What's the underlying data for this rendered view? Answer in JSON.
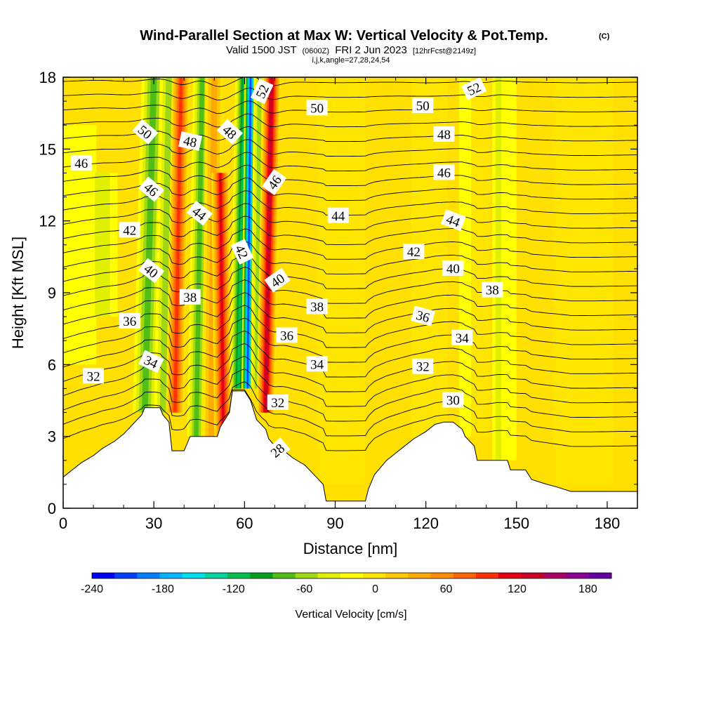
{
  "chart_data": {
    "type": "heatmap",
    "title": "Wind-Parallel Section at Max W: Vertical Velocity & Pot.Temp.",
    "title_mark": "(C)",
    "subtitle": {
      "valid": "Valid 1500 JST",
      "utc": "(0600Z)",
      "date": "FRI 2 Jun 2023",
      "fcst": "[12hrFcst@2149z]"
    },
    "indices_line": "i,j,k,angle=27,28,24,54",
    "xlabel": "Distance [nm]",
    "ylabel": "Height [Kft MSL]",
    "xlim": [
      0,
      190
    ],
    "ylim": [
      0,
      18
    ],
    "x_ticks": [
      "0",
      "30",
      "60",
      "90",
      "120",
      "150",
      "180"
    ],
    "y_ticks": [
      "0",
      "3",
      "6",
      "9",
      "12",
      "15",
      "18"
    ],
    "colorbar": {
      "label": "Vertical Velocity [cm/s]",
      "range": [
        -240,
        200
      ],
      "step": 20,
      "ticks": [
        "-240",
        "-180",
        "-120",
        "-60",
        "0",
        "60",
        "120",
        "180"
      ],
      "colors": [
        "#0000ff",
        "#0040ff",
        "#0080ff",
        "#00b4ff",
        "#00dcf0",
        "#00d2a0",
        "#00c050",
        "#00a020",
        "#50be14",
        "#a0d814",
        "#e0f000",
        "#ffff00",
        "#ffe600",
        "#ffc800",
        "#ffaa00",
        "#ff8c00",
        "#ff6400",
        "#ff3200",
        "#e60014",
        "#c80028",
        "#aa0064",
        "#8c0096",
        "#6400a0"
      ]
    },
    "terrain": [
      [
        0,
        1.3
      ],
      [
        3,
        1.6
      ],
      [
        6,
        1.9
      ],
      [
        10,
        2.2
      ],
      [
        13,
        2.5
      ],
      [
        17,
        2.8
      ],
      [
        20,
        3.1
      ],
      [
        23,
        3.5
      ],
      [
        26,
        3.9
      ],
      [
        27,
        4.2
      ],
      [
        32,
        4.2
      ],
      [
        33,
        3.9
      ],
      [
        35,
        3.6
      ],
      [
        36,
        2.4
      ],
      [
        40,
        2.4
      ],
      [
        41,
        2.7
      ],
      [
        42,
        3.0
      ],
      [
        51,
        3.0
      ],
      [
        52,
        3.4
      ],
      [
        55,
        4.0
      ],
      [
        56,
        4.9
      ],
      [
        60,
        4.9
      ],
      [
        62,
        4.5
      ],
      [
        64,
        3.7
      ],
      [
        67,
        3.3
      ],
      [
        68,
        2.9
      ],
      [
        70,
        2.6
      ],
      [
        73,
        2.4
      ],
      [
        76,
        2.1
      ],
      [
        80,
        1.8
      ],
      [
        83,
        1.4
      ],
      [
        86,
        1.0
      ],
      [
        87,
        0.3
      ],
      [
        100,
        0.3
      ],
      [
        101,
        0.8
      ],
      [
        103,
        1.4
      ],
      [
        107,
        2.0
      ],
      [
        110,
        2.3
      ],
      [
        113,
        2.6
      ],
      [
        116,
        2.9
      ],
      [
        120,
        3.2
      ],
      [
        123,
        3.5
      ],
      [
        126,
        3.6
      ],
      [
        129,
        3.6
      ],
      [
        132,
        3.3
      ],
      [
        133,
        3.0
      ],
      [
        136,
        2.6
      ],
      [
        137,
        2.0
      ],
      [
        147,
        2.0
      ],
      [
        148,
        1.6
      ],
      [
        153,
        1.6
      ],
      [
        155,
        1.2
      ],
      [
        160,
        1.0
      ],
      [
        163,
        0.9
      ],
      [
        168,
        0.7
      ],
      [
        190,
        0.7
      ]
    ],
    "vertical_velocity_bands": [
      {
        "x": 5,
        "tilt": 0,
        "width": 6,
        "w": -30,
        "z": [
          6,
          16
        ]
      },
      {
        "x": 13,
        "tilt": 0,
        "width": 5,
        "w": -50,
        "z": [
          8,
          14
        ]
      },
      {
        "x": 27,
        "tilt": 3,
        "width": 4,
        "w": -95,
        "z": [
          4,
          18
        ]
      },
      {
        "x": 33,
        "tilt": 2,
        "width": 3,
        "w": -60,
        "z": [
          4,
          18
        ]
      },
      {
        "x": 37,
        "tilt": 2,
        "width": 3,
        "w": 135,
        "z": [
          4,
          18
        ]
      },
      {
        "x": 44,
        "tilt": 2,
        "width": 3,
        "w": -85,
        "z": [
          3,
          18
        ]
      },
      {
        "x": 49,
        "tilt": 1,
        "width": 3,
        "w": 60,
        "z": [
          3,
          18
        ]
      },
      {
        "x": 53,
        "tilt": -1,
        "width": 3,
        "w": 140,
        "z": [
          3,
          14
        ]
      },
      {
        "x": 58,
        "tilt": 2,
        "width": 3,
        "w": -120,
        "z": [
          5,
          18
        ]
      },
      {
        "x": 61,
        "tilt": 1,
        "width": 2,
        "w": -235,
        "z": [
          5,
          18
        ]
      },
      {
        "x": 64,
        "tilt": 1,
        "width": 2,
        "w": -70,
        "z": [
          5,
          18
        ]
      },
      {
        "x": 67,
        "tilt": 2,
        "width": 3,
        "w": 175,
        "z": [
          4,
          18
        ]
      },
      {
        "x": 92,
        "tilt": 0,
        "width": 8,
        "w": 25,
        "z": [
          1,
          18
        ]
      },
      {
        "x": 121,
        "tilt": 0,
        "width": 6,
        "w": 30,
        "z": [
          3,
          18
        ]
      },
      {
        "x": 133,
        "tilt": 0,
        "width": 2,
        "w": -35,
        "z": [
          3,
          18
        ]
      },
      {
        "x": 138,
        "tilt": 0,
        "width": 3,
        "w": 25,
        "z": [
          3,
          18
        ]
      },
      {
        "x": 144,
        "tilt": 0,
        "width": 2,
        "w": -45,
        "z": [
          2,
          18
        ]
      },
      {
        "x": 148,
        "tilt": 0,
        "width": 2,
        "w": -25,
        "z": [
          2,
          18
        ]
      },
      {
        "x": 172,
        "tilt": 0,
        "width": 10,
        "w": 30,
        "z": [
          1,
          18
        ]
      }
    ],
    "potential_temperature_contours": {
      "levels": [
        28,
        29,
        30,
        31,
        32,
        33,
        34,
        35,
        36,
        37,
        38,
        39,
        40,
        41,
        42,
        43,
        44,
        45,
        46,
        47,
        48,
        49,
        50,
        51,
        52,
        53
      ],
      "labels": [
        {
          "text": "50",
          "x": 27,
          "z": 15.7,
          "angle": 40
        },
        {
          "text": "46",
          "x": 6,
          "z": 14.4,
          "angle": 0
        },
        {
          "text": "48",
          "x": 42,
          "z": 15.3,
          "angle": 12
        },
        {
          "text": "48",
          "x": 55,
          "z": 15.7,
          "angle": 42
        },
        {
          "text": "52",
          "x": 66,
          "z": 17.4,
          "angle": -65
        },
        {
          "text": "50",
          "x": 84,
          "z": 16.7,
          "angle": 0
        },
        {
          "text": "50",
          "x": 119,
          "z": 16.8,
          "angle": 0
        },
        {
          "text": "52",
          "x": 136,
          "z": 17.5,
          "angle": -25
        },
        {
          "text": "48",
          "x": 126,
          "z": 15.6,
          "angle": 0
        },
        {
          "text": "46",
          "x": 126,
          "z": 14.0,
          "angle": 0
        },
        {
          "text": "46",
          "x": 29,
          "z": 13.3,
          "angle": 40
        },
        {
          "text": "44",
          "x": 45,
          "z": 12.3,
          "angle": 38
        },
        {
          "text": "46",
          "x": 70,
          "z": 13.6,
          "angle": -55
        },
        {
          "text": "44",
          "x": 91,
          "z": 12.2,
          "angle": 0
        },
        {
          "text": "44",
          "x": 129,
          "z": 12.0,
          "angle": 20
        },
        {
          "text": "42",
          "x": 22,
          "z": 11.6,
          "angle": 0
        },
        {
          "text": "42",
          "x": 59,
          "z": 10.7,
          "angle": 65
        },
        {
          "text": "42",
          "x": 116,
          "z": 10.7,
          "angle": 0
        },
        {
          "text": "40",
          "x": 29,
          "z": 9.9,
          "angle": 38
        },
        {
          "text": "40",
          "x": 71,
          "z": 9.5,
          "angle": -35
        },
        {
          "text": "40",
          "x": 129,
          "z": 10.0,
          "angle": 0
        },
        {
          "text": "38",
          "x": 42,
          "z": 8.8,
          "angle": 0
        },
        {
          "text": "38",
          "x": 84,
          "z": 8.4,
          "angle": 0
        },
        {
          "text": "38",
          "x": 142,
          "z": 9.1,
          "angle": 0
        },
        {
          "text": "36",
          "x": 22,
          "z": 7.8,
          "angle": 0
        },
        {
          "text": "36",
          "x": 74,
          "z": 7.2,
          "angle": 0
        },
        {
          "text": "36",
          "x": 119,
          "z": 8.0,
          "angle": 15
        },
        {
          "text": "34",
          "x": 29,
          "z": 6.1,
          "angle": 25
        },
        {
          "text": "34",
          "x": 84,
          "z": 6.0,
          "angle": 0
        },
        {
          "text": "34",
          "x": 132,
          "z": 7.1,
          "angle": 0
        },
        {
          "text": "32",
          "x": 10,
          "z": 5.5,
          "angle": 0
        },
        {
          "text": "32",
          "x": 71,
          "z": 4.4,
          "angle": 0
        },
        {
          "text": "32",
          "x": 119,
          "z": 5.9,
          "angle": 0
        },
        {
          "text": "30",
          "x": 129,
          "z": 4.5,
          "angle": 0
        },
        {
          "text": "28",
          "x": 71,
          "z": 2.4,
          "angle": -40
        }
      ]
    }
  }
}
